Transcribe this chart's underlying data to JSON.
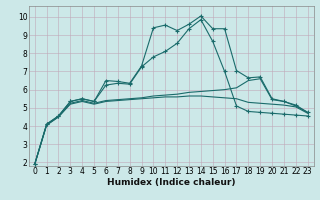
{
  "xlabel": "Humidex (Indice chaleur)",
  "bg_color": "#cce8e8",
  "line_color": "#1a6b6b",
  "xlim": [
    -0.5,
    23.5
  ],
  "ylim": [
    1.8,
    10.6
  ],
  "yticks": [
    2,
    3,
    4,
    5,
    6,
    7,
    8,
    9,
    10
  ],
  "xticks": [
    0,
    1,
    2,
    3,
    4,
    5,
    6,
    7,
    8,
    9,
    10,
    11,
    12,
    13,
    14,
    15,
    16,
    17,
    18,
    19,
    20,
    21,
    22,
    23
  ],
  "s1_x": [
    0,
    1,
    2,
    3,
    4,
    5,
    6,
    7,
    8,
    9,
    10,
    11,
    12,
    13,
    14,
    15,
    16,
    17,
    18,
    19,
    20,
    21,
    22,
    23
  ],
  "s1_y": [
    1.9,
    4.1,
    4.55,
    5.35,
    5.5,
    5.35,
    6.5,
    6.45,
    6.35,
    7.3,
    9.4,
    9.55,
    9.25,
    9.6,
    10.05,
    9.35,
    9.35,
    7.05,
    6.65,
    6.7,
    5.5,
    5.35,
    5.15,
    4.75
  ],
  "s2_x": [
    0,
    1,
    2,
    3,
    4,
    5,
    6,
    7,
    8,
    9,
    10,
    11,
    12,
    13,
    14,
    15,
    16,
    17,
    18,
    19,
    20,
    21,
    22,
    23
  ],
  "s2_y": [
    1.9,
    4.1,
    4.55,
    5.35,
    5.5,
    5.35,
    6.25,
    6.35,
    6.3,
    7.25,
    7.8,
    8.1,
    8.55,
    9.35,
    9.85,
    8.65,
    7.0,
    5.1,
    4.8,
    4.75,
    4.7,
    4.65,
    4.6,
    4.55
  ],
  "s3_x": [
    0,
    1,
    2,
    3,
    4,
    5,
    6,
    7,
    8,
    9,
    10,
    11,
    12,
    13,
    14,
    15,
    16,
    17,
    18,
    19,
    20,
    21,
    22,
    23
  ],
  "s3_y": [
    1.9,
    4.05,
    4.5,
    5.25,
    5.4,
    5.25,
    5.4,
    5.45,
    5.5,
    5.55,
    5.65,
    5.7,
    5.75,
    5.85,
    5.9,
    5.95,
    6.0,
    6.1,
    6.5,
    6.6,
    5.45,
    5.35,
    5.1,
    4.75
  ],
  "s4_x": [
    0,
    1,
    2,
    3,
    4,
    5,
    6,
    7,
    8,
    9,
    10,
    11,
    12,
    13,
    14,
    15,
    16,
    17,
    18,
    19,
    20,
    21,
    22,
    23
  ],
  "s4_y": [
    1.9,
    4.05,
    4.5,
    5.2,
    5.35,
    5.2,
    5.35,
    5.4,
    5.45,
    5.5,
    5.55,
    5.6,
    5.6,
    5.65,
    5.65,
    5.6,
    5.55,
    5.5,
    5.3,
    5.25,
    5.2,
    5.15,
    5.05,
    4.7
  ],
  "xlabel_fontsize": 6.5,
  "tick_fontsize": 5.5,
  "lw": 0.8
}
